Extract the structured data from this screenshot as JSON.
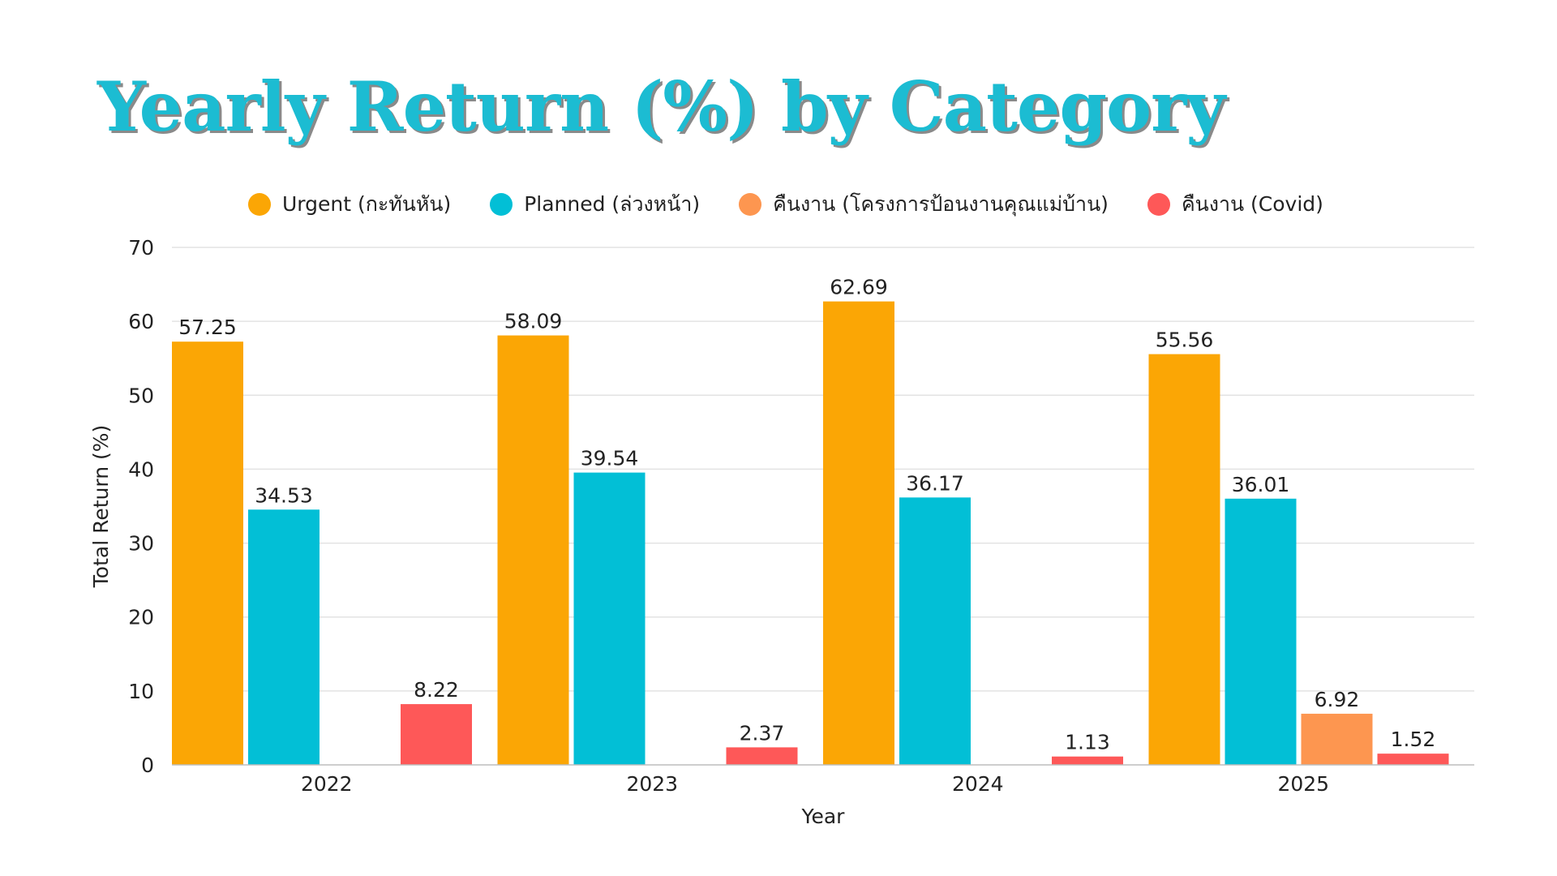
{
  "chart_data": {
    "type": "bar",
    "title": "Yearly Return (%) by Category",
    "xlabel": "Year",
    "ylabel": "Total Return (%)",
    "ylim": [
      0,
      70
    ],
    "yticks": [
      0,
      10,
      20,
      30,
      40,
      50,
      60,
      70
    ],
    "grid": true,
    "legend_position": "top",
    "categories": [
      "2022",
      "2023",
      "2024",
      "2025"
    ],
    "series": [
      {
        "name": "Urgent (กะทันหัน)",
        "color": "#FBA605",
        "values": [
          57.25,
          58.09,
          62.69,
          55.56
        ]
      },
      {
        "name": "Planned (ล่วงหน้า)",
        "color": "#02BFD6",
        "values": [
          34.53,
          39.54,
          36.17,
          36.01
        ]
      },
      {
        "name": "คืนงาน (โครงการป้อนงานคุณแม่บ้าน)",
        "color": "#FD9650",
        "values": [
          null,
          null,
          null,
          6.92
        ]
      },
      {
        "name": "คืนงาน (Covid)",
        "color": "#FE5858",
        "values": [
          8.22,
          2.37,
          1.13,
          1.52
        ]
      }
    ]
  }
}
